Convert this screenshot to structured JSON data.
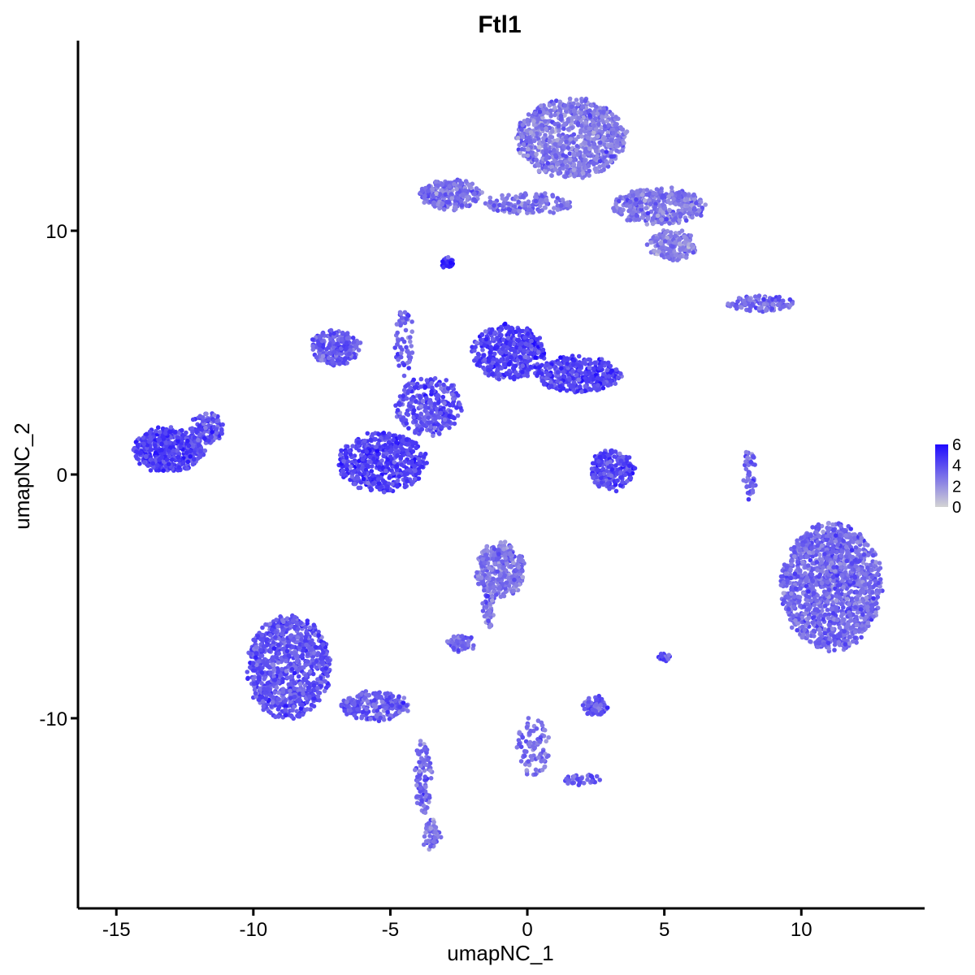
{
  "chart_data": {
    "type": "scatter",
    "title": "Ftl1",
    "xlabel": "umapNC_1",
    "ylabel": "umapNC_2",
    "xlim": [
      -16.4,
      14.5
    ],
    "ylim": [
      -17.8,
      17.8
    ],
    "x_ticks": [
      -15,
      -10,
      -5,
      0,
      5,
      10
    ],
    "x_tick_labels": [
      "-15",
      "-10",
      "-5",
      "0",
      "5",
      "10"
    ],
    "y_ticks": [
      10,
      0,
      -10
    ],
    "y_tick_labels": [
      "10",
      "0",
      "-10"
    ],
    "color_scale": {
      "low_color": "#d3d3d3",
      "high_color": "#1f0aff",
      "min": 0,
      "max": 6,
      "tick_values": [
        6,
        4,
        2,
        0
      ],
      "tick_labels": [
        "6",
        "4",
        "2",
        "0"
      ]
    },
    "grid": false,
    "legend_position": "right",
    "clusters": [
      {
        "id": "top-blob",
        "x": 1.6,
        "y": 13.8,
        "rx": 2.0,
        "ry": 1.6,
        "n": 900,
        "expr": 2.7
      },
      {
        "id": "top-arm-left",
        "x": -2.8,
        "y": 11.5,
        "rx": 1.1,
        "ry": 0.6,
        "n": 260,
        "expr": 3.0
      },
      {
        "id": "top-arm-right",
        "x": 4.8,
        "y": 11.0,
        "rx": 1.7,
        "ry": 0.7,
        "n": 420,
        "expr": 2.8
      },
      {
        "id": "top-tail-right",
        "x": 5.3,
        "y": 9.4,
        "rx": 0.9,
        "ry": 0.6,
        "n": 180,
        "expr": 2.6
      },
      {
        "id": "top-bridge",
        "x": 0.0,
        "y": 11.1,
        "rx": 1.6,
        "ry": 0.4,
        "n": 160,
        "expr": 3.0
      },
      {
        "id": "small-top",
        "x": -2.9,
        "y": 8.7,
        "rx": 0.2,
        "ry": 0.2,
        "n": 30,
        "expr": 4.8
      },
      {
        "id": "center-upper-left-arm",
        "x": -7.0,
        "y": 5.2,
        "rx": 0.9,
        "ry": 0.7,
        "n": 220,
        "expr": 3.6
      },
      {
        "id": "center-upper-right",
        "x": -0.7,
        "y": 5.0,
        "rx": 1.3,
        "ry": 1.1,
        "n": 420,
        "expr": 4.3
      },
      {
        "id": "center-right-arm",
        "x": 1.8,
        "y": 4.1,
        "rx": 1.6,
        "ry": 0.7,
        "n": 380,
        "expr": 4.3
      },
      {
        "id": "center-bottom-blob",
        "x": -5.3,
        "y": 0.5,
        "rx": 1.6,
        "ry": 1.2,
        "n": 520,
        "expr": 4.4
      },
      {
        "id": "center-body",
        "x": -3.6,
        "y": 2.8,
        "rx": 1.2,
        "ry": 1.2,
        "n": 300,
        "expr": 3.9
      },
      {
        "id": "center-spike",
        "x": -4.5,
        "y": 5.4,
        "rx": 0.3,
        "ry": 1.4,
        "n": 60,
        "expr": 3.3
      },
      {
        "id": "left-blob",
        "x": -13.1,
        "y": 1.0,
        "rx": 1.3,
        "ry": 0.9,
        "n": 520,
        "expr": 4.4
      },
      {
        "id": "left-arm",
        "x": -11.7,
        "y": 1.9,
        "rx": 0.6,
        "ry": 0.6,
        "n": 110,
        "expr": 4.0
      },
      {
        "id": "mid-right-small",
        "x": 3.1,
        "y": 0.2,
        "rx": 0.8,
        "ry": 0.8,
        "n": 220,
        "expr": 4.1
      },
      {
        "id": "right-thin",
        "x": 8.5,
        "y": 7.0,
        "rx": 1.2,
        "ry": 0.3,
        "n": 110,
        "expr": 3.2
      },
      {
        "id": "right-vert",
        "x": 8.1,
        "y": 0.0,
        "rx": 0.2,
        "ry": 1.0,
        "n": 50,
        "expr": 3.4
      },
      {
        "id": "right-big",
        "x": 11.1,
        "y": -4.6,
        "rx": 1.8,
        "ry": 2.6,
        "n": 1400,
        "expr": 3.2
      },
      {
        "id": "lower-left-big",
        "x": -8.7,
        "y": -7.9,
        "rx": 1.5,
        "ry": 2.1,
        "n": 900,
        "expr": 3.8
      },
      {
        "id": "lower-left-tail",
        "x": -5.6,
        "y": -9.5,
        "rx": 1.3,
        "ry": 0.6,
        "n": 220,
        "expr": 3.5
      },
      {
        "id": "lower-left-stem",
        "x": -3.8,
        "y": -12.4,
        "rx": 0.3,
        "ry": 1.5,
        "n": 90,
        "expr": 3.3
      },
      {
        "id": "lower-left-bottom",
        "x": -3.5,
        "y": -14.8,
        "rx": 0.3,
        "ry": 0.6,
        "n": 60,
        "expr": 3.0
      },
      {
        "id": "middle-lower",
        "x": -1.0,
        "y": -3.9,
        "rx": 0.9,
        "ry": 1.1,
        "n": 320,
        "expr": 2.8
      },
      {
        "id": "middle-lower-arm",
        "x": -2.4,
        "y": -6.9,
        "rx": 0.5,
        "ry": 0.3,
        "n": 70,
        "expr": 3.3
      },
      {
        "id": "middle-lower-stem",
        "x": -1.4,
        "y": -5.4,
        "rx": 0.2,
        "ry": 1.0,
        "n": 50,
        "expr": 3.0
      },
      {
        "id": "bottom-center-tri",
        "x": 0.2,
        "y": -11.2,
        "rx": 0.6,
        "ry": 1.2,
        "n": 90,
        "expr": 3.0
      },
      {
        "id": "bottom-center-arm",
        "x": 1.9,
        "y": -12.5,
        "rx": 0.7,
        "ry": 0.2,
        "n": 40,
        "expr": 3.5
      },
      {
        "id": "small-mid-right",
        "x": 2.5,
        "y": -9.5,
        "rx": 0.4,
        "ry": 0.4,
        "n": 80,
        "expr": 3.6
      },
      {
        "id": "small-mid-right-2",
        "x": 5.0,
        "y": -7.5,
        "rx": 0.2,
        "ry": 0.2,
        "n": 25,
        "expr": 4.0
      }
    ]
  }
}
